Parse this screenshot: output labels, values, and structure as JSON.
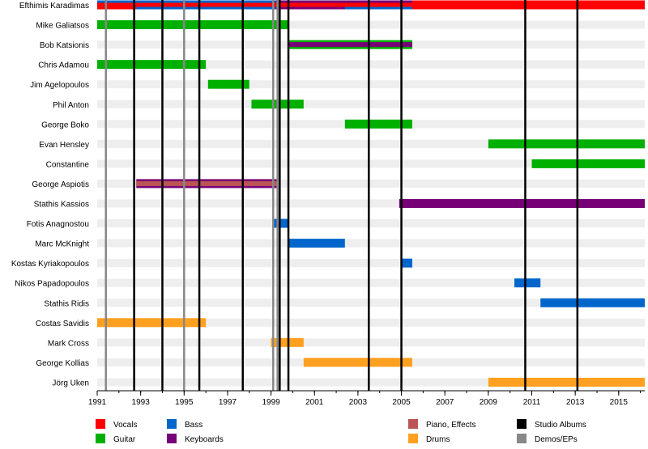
{
  "chart_data": {
    "type": "timeline",
    "xlim": [
      1991,
      2016.2
    ],
    "ticks": [
      1991,
      1993,
      1995,
      1997,
      1999,
      2001,
      2003,
      2005,
      2007,
      2009,
      2011,
      2013,
      2015
    ],
    "roles": {
      "vocals": {
        "label": "Vocals",
        "color": "#ff0000"
      },
      "guitar": {
        "label": "Guitar",
        "color": "#00b000"
      },
      "bass": {
        "label": "Bass",
        "color": "#0066cc"
      },
      "keyboards": {
        "label": "Keyboards",
        "color": "#770077"
      },
      "piano": {
        "label": "Piano, Effects",
        "color": "#bb5555"
      },
      "drums": {
        "label": "Drums",
        "color": "#ffa020"
      },
      "studio": {
        "label": "Studio Albums",
        "color": "#000000"
      },
      "demos": {
        "label": "Demos/EPs",
        "color": "#888888"
      }
    },
    "members": [
      {
        "name": "Efthimis Karadimas",
        "spans": [
          {
            "role": "vocals",
            "start": 1991,
            "end": 2016.2,
            "layer": "main"
          },
          {
            "role": "bass",
            "start": 1991,
            "end": 1992.8,
            "layer": "top"
          },
          {
            "role": "bass",
            "start": 1992.8,
            "end": 1999.2,
            "layer": "top"
          },
          {
            "role": "keyboards",
            "start": 1999.2,
            "end": 2005.5,
            "layer": "top"
          },
          {
            "role": "bass",
            "start": 1992.8,
            "end": 1999.2,
            "layer": "bottom"
          },
          {
            "role": "keyboards",
            "start": 1999.2,
            "end": 2002.4,
            "layer": "bottom"
          },
          {
            "role": "bass",
            "start": 2002.4,
            "end": 2005.5,
            "layer": "bottom"
          }
        ]
      },
      {
        "name": "Mike Galiatsos",
        "spans": [
          {
            "role": "guitar",
            "start": 1991,
            "end": 1999.8,
            "layer": "main"
          }
        ]
      },
      {
        "name": "Bob Katsionis",
        "spans": [
          {
            "role": "guitar",
            "start": 1999.8,
            "end": 2005.5,
            "layer": "main"
          },
          {
            "role": "keyboards",
            "start": 1999.8,
            "end": 2005.5,
            "layer": "inner"
          }
        ]
      },
      {
        "name": "Chris Adamou",
        "spans": [
          {
            "role": "guitar",
            "start": 1991,
            "end": 1996,
            "layer": "main"
          }
        ]
      },
      {
        "name": "Jim Agelopoulos",
        "spans": [
          {
            "role": "guitar",
            "start": 1996.1,
            "end": 1998,
            "layer": "main"
          }
        ]
      },
      {
        "name": "Phil Anton",
        "spans": [
          {
            "role": "guitar",
            "start": 1998.1,
            "end": 2000.5,
            "layer": "main"
          }
        ]
      },
      {
        "name": "George Boko",
        "spans": [
          {
            "role": "guitar",
            "start": 2002.4,
            "end": 2005.5,
            "layer": "main"
          }
        ]
      },
      {
        "name": "Evan Hensley",
        "spans": [
          {
            "role": "guitar",
            "start": 2009,
            "end": 2016.2,
            "layer": "main"
          }
        ]
      },
      {
        "name": "Constantine",
        "spans": [
          {
            "role": "guitar",
            "start": 2011,
            "end": 2016.2,
            "layer": "main"
          }
        ]
      },
      {
        "name": "George Aspiotis",
        "spans": [
          {
            "role": "keyboards",
            "start": 1992.8,
            "end": 1999.3,
            "layer": "main"
          },
          {
            "role": "piano",
            "start": 1992.8,
            "end": 1999.3,
            "layer": "inner"
          }
        ]
      },
      {
        "name": "Stathis Kassios",
        "spans": [
          {
            "role": "keyboards",
            "start": 2004.9,
            "end": 2016.2,
            "layer": "main"
          }
        ]
      },
      {
        "name": "Fotis Anagnostou",
        "spans": [
          {
            "role": "bass",
            "start": 1999.1,
            "end": 1999.8,
            "layer": "main"
          }
        ]
      },
      {
        "name": "Marc McKnight",
        "spans": [
          {
            "role": "bass",
            "start": 1999.8,
            "end": 2002.4,
            "layer": "main"
          }
        ]
      },
      {
        "name": "Kostas Kyriakopoulos",
        "spans": [
          {
            "role": "bass",
            "start": 2005,
            "end": 2005.5,
            "layer": "main"
          }
        ]
      },
      {
        "name": "Nikos Papadopoulos",
        "spans": [
          {
            "role": "bass",
            "start": 2010.2,
            "end": 2011.4,
            "layer": "main"
          }
        ]
      },
      {
        "name": "Stathis Ridis",
        "spans": [
          {
            "role": "bass",
            "start": 2011.4,
            "end": 2016.2,
            "layer": "main"
          }
        ]
      },
      {
        "name": "Costas Savidis",
        "spans": [
          {
            "role": "drums",
            "start": 1991,
            "end": 1996,
            "layer": "main"
          }
        ]
      },
      {
        "name": "Mark Cross",
        "spans": [
          {
            "role": "drums",
            "start": 1999,
            "end": 2000.5,
            "layer": "main"
          }
        ]
      },
      {
        "name": "George Kollias",
        "spans": [
          {
            "role": "drums",
            "start": 2000.5,
            "end": 2005.5,
            "layer": "main"
          }
        ]
      },
      {
        "name": "Jörg Uken",
        "spans": [
          {
            "role": "drums",
            "start": 2009,
            "end": 2016.2,
            "layer": "main"
          }
        ]
      }
    ],
    "studio_albums": [
      1992.7,
      1994,
      1995.7,
      1997.7,
      1999.4,
      1999.8,
      2003.5,
      2005,
      2010.7,
      2013.1
    ],
    "demos": [
      1991.4,
      1995,
      1999.1,
      1999.3
    ],
    "legend": [
      {
        "role": "vocals"
      },
      {
        "role": "guitar"
      },
      {
        "role": "bass"
      },
      {
        "role": "keyboards"
      },
      {
        "role": "piano"
      },
      {
        "role": "drums"
      },
      {
        "role": "studio"
      },
      {
        "role": "demos"
      }
    ]
  }
}
